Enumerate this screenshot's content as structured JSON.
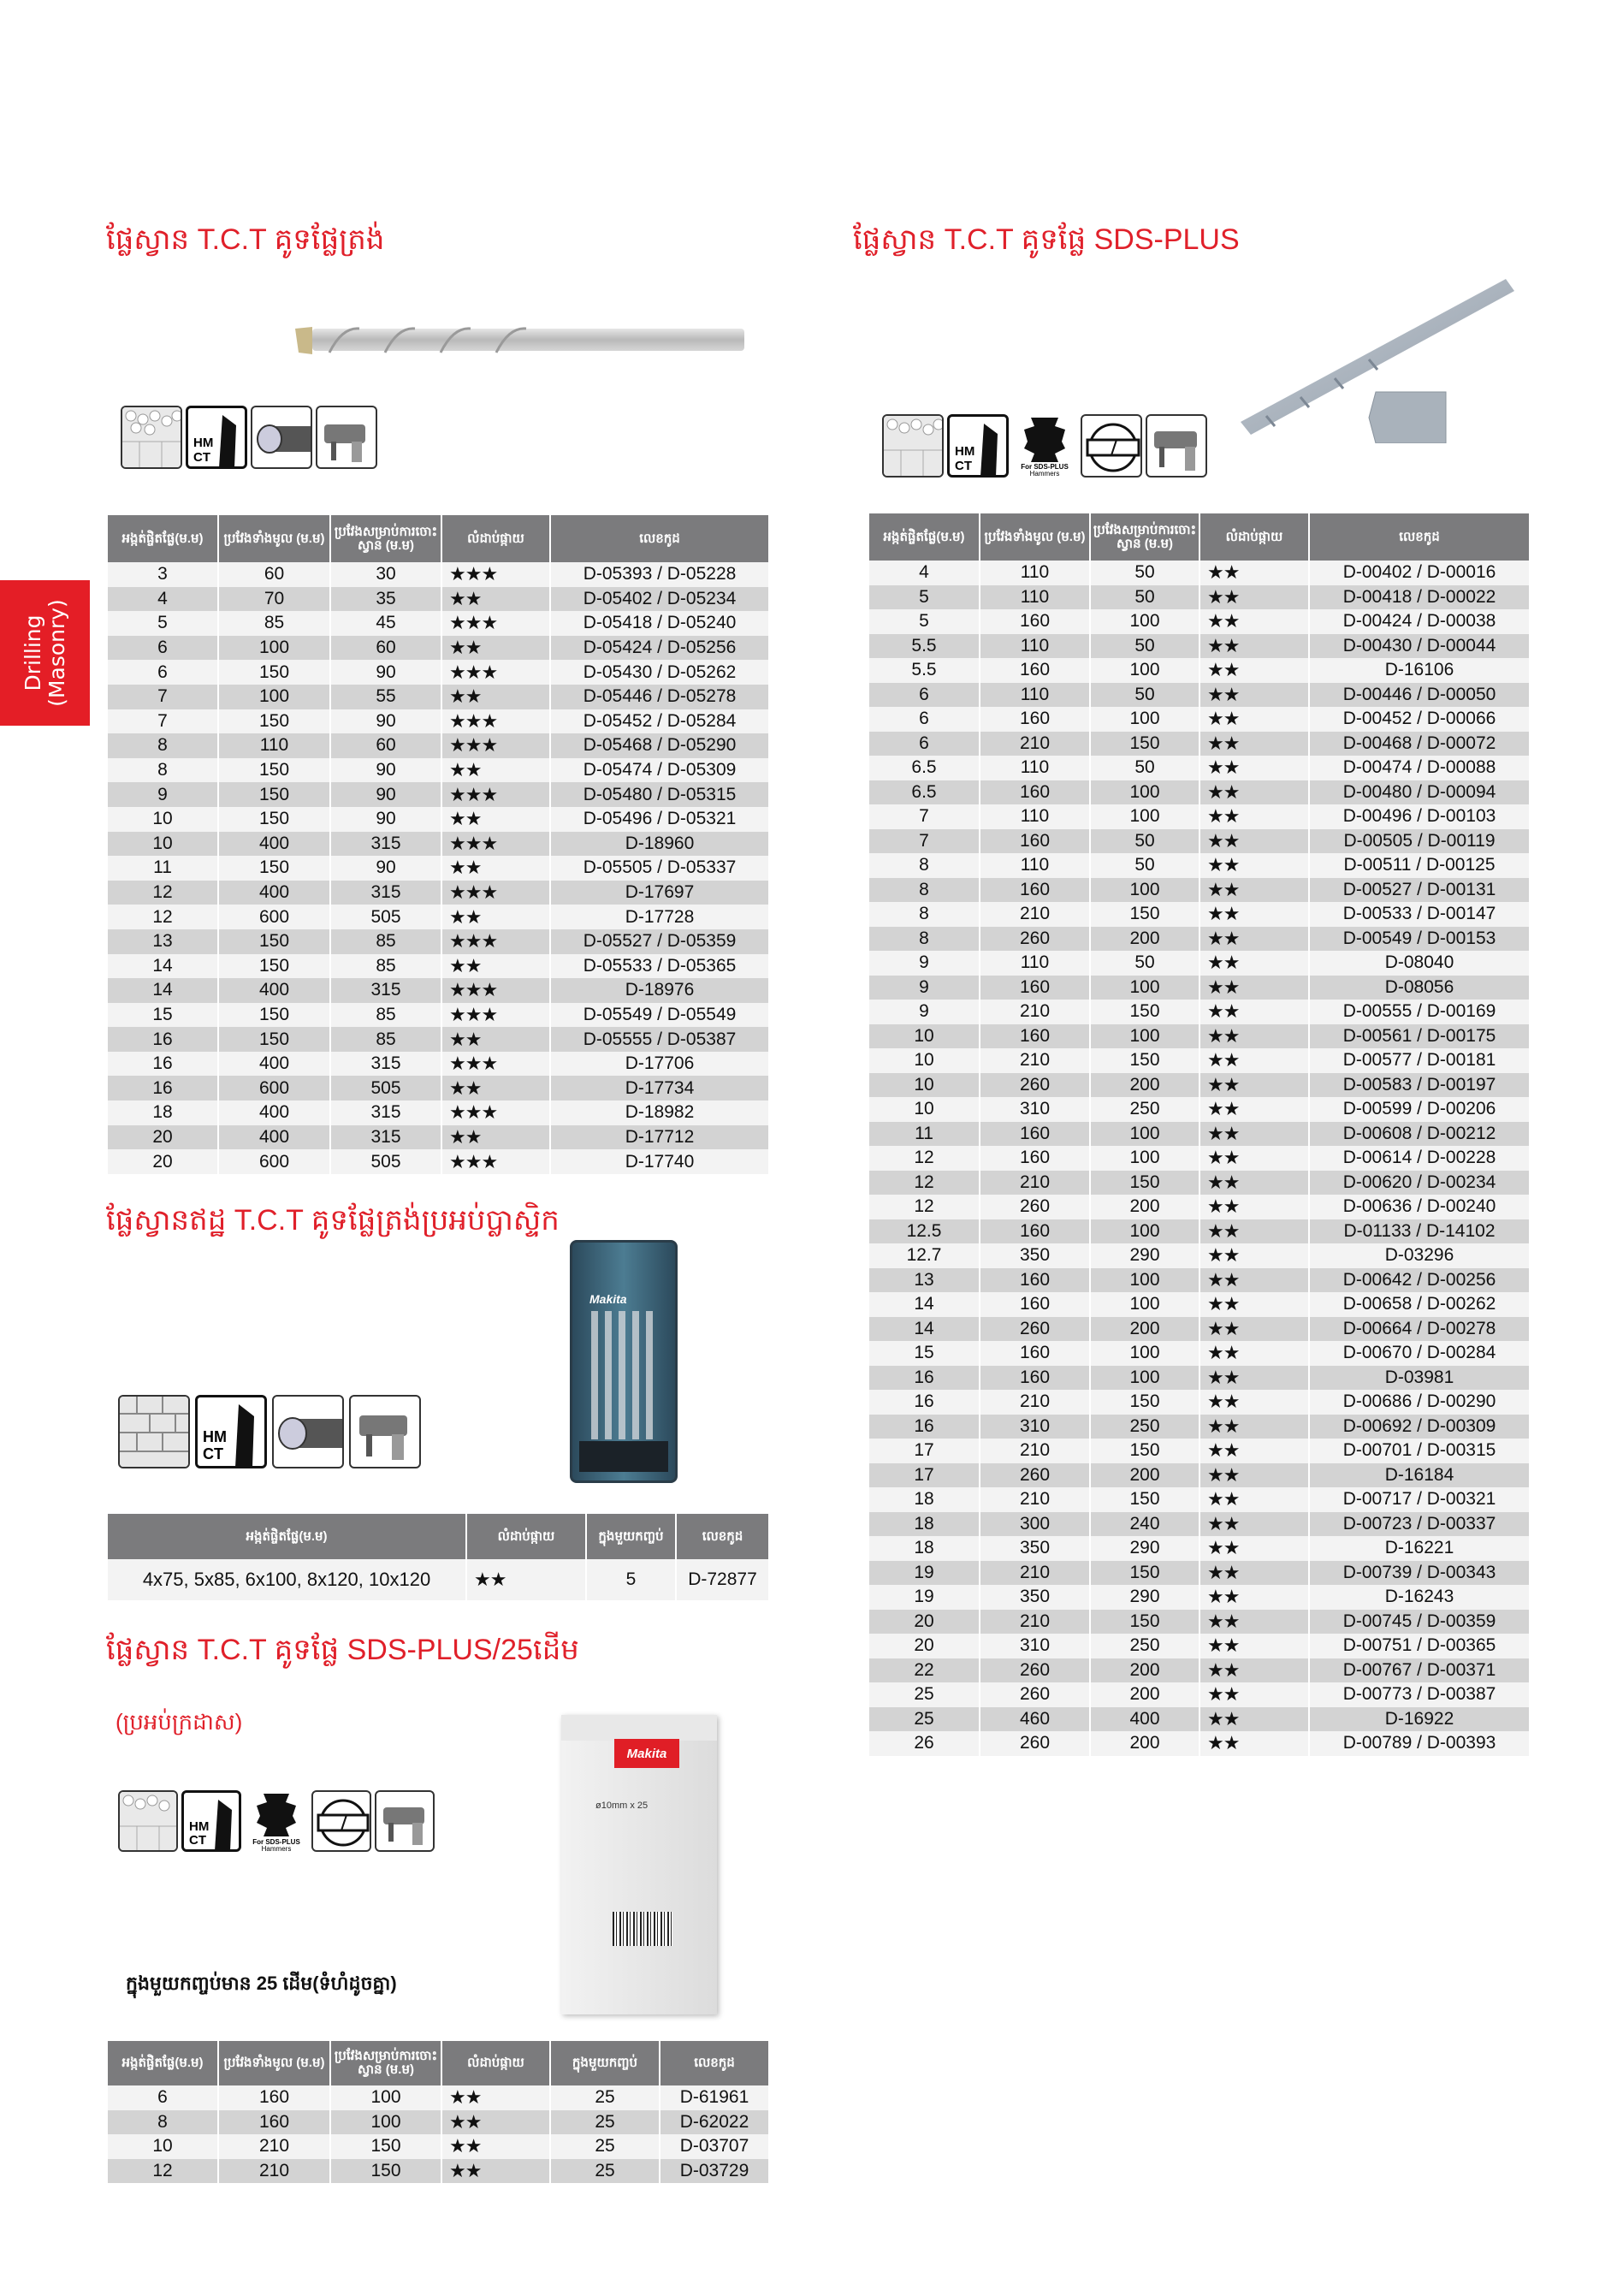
{
  "side_tab": {
    "line1": "Drilling",
    "line2": "(Masonry)",
    "color": "#e41e26"
  },
  "accent_color": "#e0202a",
  "icons": {
    "masonry": "masonry-wall-icon",
    "hmct": "hm-ct-carbide-tip-icon",
    "hmct_label1": "HM",
    "hmct_label2": "CT",
    "shank": "straight-shank-icon",
    "sds_shank": "sds-plus-shank-icon",
    "sds_label1": "For SDS-PLUS",
    "sds_label2": "Hammers",
    "tip": "cross-tip-icon",
    "drill": "hammer-drill-icon"
  },
  "section1": {
    "title": "ផ្លែស្វាន T.C.T គូទផ្លែត្រង់",
    "headers": [
      "អង្កត់ផ្ចិតផ្លែ(ម.ម)",
      "ប្រវែងទាំងមូល (ម.ម)",
      "ប្រវែងសម្រាប់ការចោះស្វាន (ម.ម)",
      "លំដាប់ផ្កាយ",
      "លេខកូដ"
    ],
    "rows": [
      [
        "3",
        "60",
        "30",
        "★★★",
        "D-05393 / D-05228"
      ],
      [
        "4",
        "70",
        "35",
        "★★",
        "D-05402 / D-05234"
      ],
      [
        "5",
        "85",
        "45",
        "★★★",
        "D-05418 / D-05240"
      ],
      [
        "6",
        "100",
        "60",
        "★★",
        "D-05424 / D-05256"
      ],
      [
        "6",
        "150",
        "90",
        "★★★",
        "D-05430 / D-05262"
      ],
      [
        "7",
        "100",
        "55",
        "★★",
        "D-05446 / D-05278"
      ],
      [
        "7",
        "150",
        "90",
        "★★★",
        "D-05452 / D-05284"
      ],
      [
        "8",
        "110",
        "60",
        "★★★",
        "D-05468 / D-05290"
      ],
      [
        "8",
        "150",
        "90",
        "★★",
        "D-05474 / D-05309"
      ],
      [
        "9",
        "150",
        "90",
        "★★★",
        "D-05480 / D-05315"
      ],
      [
        "10",
        "150",
        "90",
        "★★",
        "D-05496 / D-05321"
      ],
      [
        "10",
        "400",
        "315",
        "★★★",
        "D-18960"
      ],
      [
        "11",
        "150",
        "90",
        "★★",
        "D-05505 / D-05337"
      ],
      [
        "12",
        "400",
        "315",
        "★★★",
        "D-17697"
      ],
      [
        "12",
        "600",
        "505",
        "★★",
        "D-17728"
      ],
      [
        "13",
        "150",
        "85",
        "★★★",
        "D-05527 / D-05359"
      ],
      [
        "14",
        "150",
        "85",
        "★★",
        "D-05533 / D-05365"
      ],
      [
        "14",
        "400",
        "315",
        "★★★",
        "D-18976"
      ],
      [
        "15",
        "150",
        "85",
        "★★★",
        "D-05549 / D-05549"
      ],
      [
        "16",
        "150",
        "85",
        "★★",
        "D-05555 / D-05387"
      ],
      [
        "16",
        "400",
        "315",
        "★★★",
        "D-17706"
      ],
      [
        "16",
        "600",
        "505",
        "★★",
        "D-17734"
      ],
      [
        "18",
        "400",
        "315",
        "★★★",
        "D-18982"
      ],
      [
        "20",
        "400",
        "315",
        "★★",
        "D-17712"
      ],
      [
        "20",
        "600",
        "505",
        "★★★",
        "D-17740"
      ]
    ]
  },
  "section2": {
    "title": "ផ្លែស្វាន T.C.T គូទផ្លែ SDS-PLUS",
    "headers": [
      "អង្កត់ផ្ចិតផ្លែ(ម.ម)",
      "ប្រវែងទាំងមូល (ម.ម)",
      "ប្រវែងសម្រាប់ការចោះស្វាន (ម.ម)",
      "លំដាប់ផ្កាយ",
      "លេខកូដ"
    ],
    "rows": [
      [
        "4",
        "110",
        "50",
        "★★",
        "D-00402 / D-00016"
      ],
      [
        "5",
        "110",
        "50",
        "★★",
        "D-00418 / D-00022"
      ],
      [
        "5",
        "160",
        "100",
        "★★",
        "D-00424 / D-00038"
      ],
      [
        "5.5",
        "110",
        "50",
        "★★",
        "D-00430 / D-00044"
      ],
      [
        "5.5",
        "160",
        "100",
        "★★",
        "D-16106"
      ],
      [
        "6",
        "110",
        "50",
        "★★",
        "D-00446 / D-00050"
      ],
      [
        "6",
        "160",
        "100",
        "★★",
        "D-00452 / D-00066"
      ],
      [
        "6",
        "210",
        "150",
        "★★",
        "D-00468 / D-00072"
      ],
      [
        "6.5",
        "110",
        "50",
        "★★",
        "D-00474 / D-00088"
      ],
      [
        "6.5",
        "160",
        "100",
        "★★",
        "D-00480 / D-00094"
      ],
      [
        "7",
        "110",
        "100",
        "★★",
        "D-00496 / D-00103"
      ],
      [
        "7",
        "160",
        "50",
        "★★",
        "D-00505 / D-00119"
      ],
      [
        "8",
        "110",
        "50",
        "★★",
        "D-00511 / D-00125"
      ],
      [
        "8",
        "160",
        "100",
        "★★",
        "D-00527 / D-00131"
      ],
      [
        "8",
        "210",
        "150",
        "★★",
        "D-00533 / D-00147"
      ],
      [
        "8",
        "260",
        "200",
        "★★",
        "D-00549 / D-00153"
      ],
      [
        "9",
        "110",
        "50",
        "★★",
        "D-08040"
      ],
      [
        "9",
        "160",
        "100",
        "★★",
        "D-08056"
      ],
      [
        "9",
        "210",
        "150",
        "★★",
        "D-00555 / D-00169"
      ],
      [
        "10",
        "160",
        "100",
        "★★",
        "D-00561 / D-00175"
      ],
      [
        "10",
        "210",
        "150",
        "★★",
        "D-00577 / D-00181"
      ],
      [
        "10",
        "260",
        "200",
        "★★",
        "D-00583 / D-00197"
      ],
      [
        "10",
        "310",
        "250",
        "★★",
        "D-00599 / D-00206"
      ],
      [
        "11",
        "160",
        "100",
        "★★",
        "D-00608 / D-00212"
      ],
      [
        "12",
        "160",
        "100",
        "★★",
        "D-00614 / D-00228"
      ],
      [
        "12",
        "210",
        "150",
        "★★",
        "D-00620 / D-00234"
      ],
      [
        "12",
        "260",
        "200",
        "★★",
        "D-00636 / D-00240"
      ],
      [
        "12.5",
        "160",
        "100",
        "★★",
        "D-01133 / D-14102"
      ],
      [
        "12.7",
        "350",
        "290",
        "★★",
        "D-03296"
      ],
      [
        "13",
        "160",
        "100",
        "★★",
        "D-00642 / D-00256"
      ],
      [
        "14",
        "160",
        "100",
        "★★",
        "D-00658 / D-00262"
      ],
      [
        "14",
        "260",
        "200",
        "★★",
        "D-00664 / D-00278"
      ],
      [
        "15",
        "160",
        "100",
        "★★",
        "D-00670 / D-00284"
      ],
      [
        "16",
        "160",
        "100",
        "★★",
        "D-03981"
      ],
      [
        "16",
        "210",
        "150",
        "★★",
        "D-00686 / D-00290"
      ],
      [
        "16",
        "310",
        "250",
        "★★",
        "D-00692 / D-00309"
      ],
      [
        "17",
        "210",
        "150",
        "★★",
        "D-00701 / D-00315"
      ],
      [
        "17",
        "260",
        "200",
        "★★",
        "D-16184"
      ],
      [
        "18",
        "210",
        "150",
        "★★",
        "D-00717 / D-00321"
      ],
      [
        "18",
        "300",
        "240",
        "★★",
        "D-00723 / D-00337"
      ],
      [
        "18",
        "350",
        "290",
        "★★",
        "D-16221"
      ],
      [
        "19",
        "210",
        "150",
        "★★",
        "D-00739 / D-00343"
      ],
      [
        "19",
        "350",
        "290",
        "★★",
        "D-16243"
      ],
      [
        "20",
        "210",
        "150",
        "★★",
        "D-00745 / D-00359"
      ],
      [
        "20",
        "310",
        "250",
        "★★",
        "D-00751 / D-00365"
      ],
      [
        "22",
        "260",
        "200",
        "★★",
        "D-00767 / D-00371"
      ],
      [
        "25",
        "260",
        "200",
        "★★",
        "D-00773 / D-00387"
      ],
      [
        "25",
        "460",
        "400",
        "★★",
        "D-16922"
      ],
      [
        "26",
        "260",
        "200",
        "★★",
        "D-00789 / D-00393"
      ]
    ]
  },
  "section3": {
    "title": "ផ្លែស្វានឥដ្ឋ T.C.T គូទផ្លែត្រង់ប្រអប់ប្លាស្ទិក",
    "case_brand": "Makita",
    "headers": [
      "អង្កត់ផ្ចិតផ្លែ(ម.ម)",
      "លំដាប់ផ្កាយ",
      "ក្នុងមួយកញ្ចប់",
      "លេខកូដ"
    ],
    "rows": [
      [
        "4x75, 5x85, 6x100, 8x120, 10x120",
        "★★",
        "5",
        "D-72877"
      ]
    ]
  },
  "section4": {
    "title": "ផ្លែស្វាន T.C.T គូទផ្លែ SDS-PLUS/25ដើម",
    "subtitle": "(ប្រអប់ក្រដាស)",
    "note": "ក្នុងមួយកញ្ចប់មាន 25 ដើម(ទំហំដូចគ្នា)",
    "box_brand": "Makita",
    "box_label": "ø10mm x 25",
    "headers": [
      "អង្កត់ផ្ចិតផ្លែ(ម.ម)",
      "ប្រវែងទាំងមូល (ម.ម)",
      "ប្រវែងសម្រាប់ការចោះស្វាន (ម.ម)",
      "លំដាប់ផ្កាយ",
      "ក្នុងមួយកញ្ចប់",
      "លេខកូដ"
    ],
    "rows": [
      [
        "6",
        "160",
        "100",
        "★★",
        "25",
        "D-61961"
      ],
      [
        "8",
        "160",
        "100",
        "★★",
        "25",
        "D-62022"
      ],
      [
        "10",
        "210",
        "150",
        "★★",
        "25",
        "D-03707"
      ],
      [
        "12",
        "210",
        "150",
        "★★",
        "25",
        "D-03729"
      ]
    ]
  }
}
